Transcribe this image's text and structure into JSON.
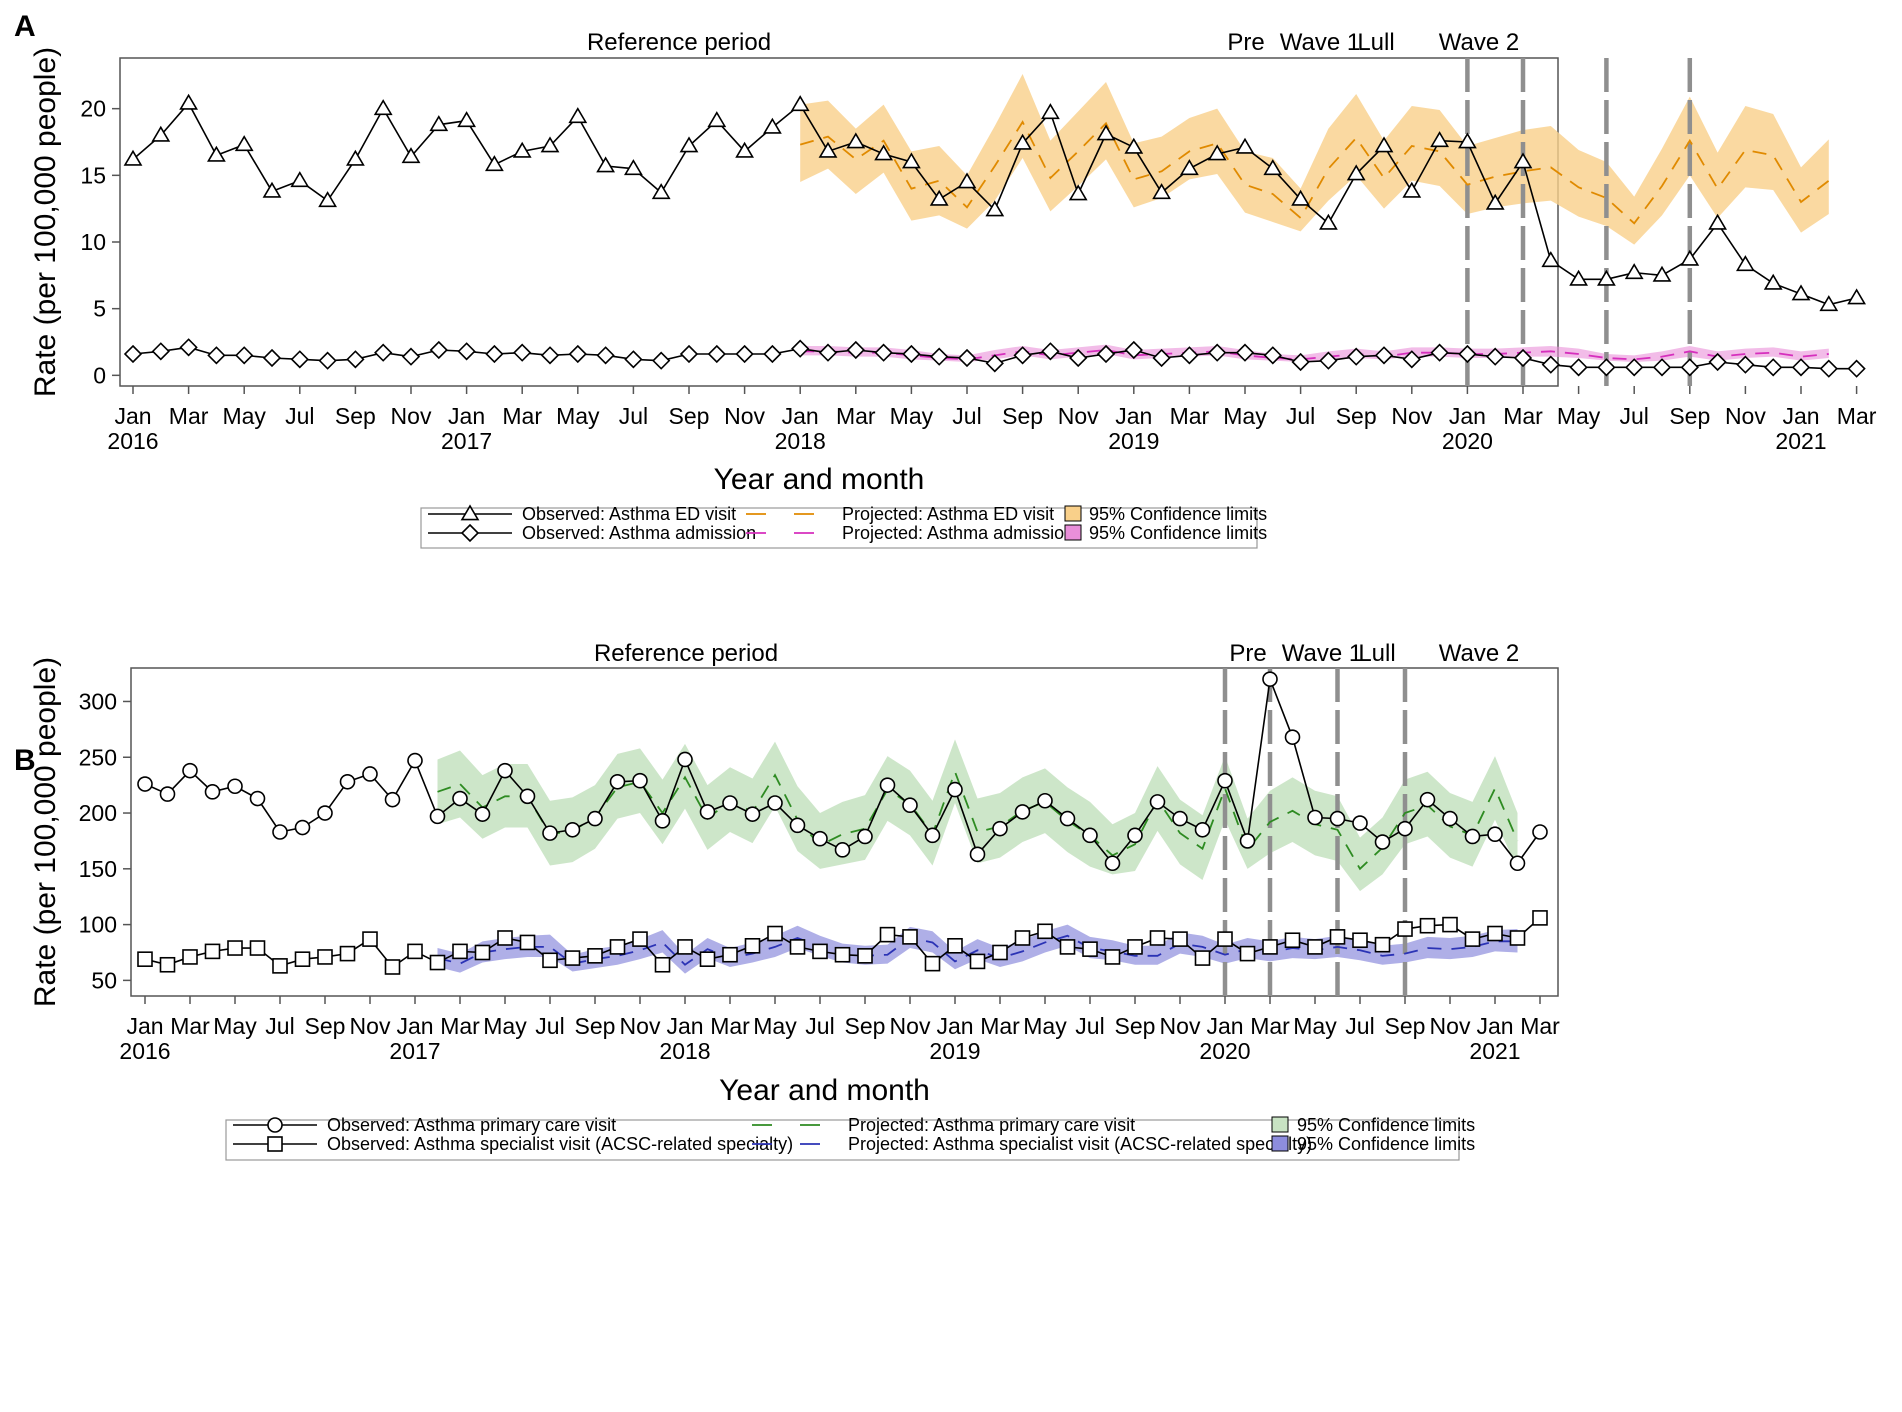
{
  "chart_data": [
    {
      "panel": "A",
      "type": "line",
      "xlabel": "Year and month",
      "ylabel": "Rate (per 100,000 people)",
      "ylim": [
        -0.8,
        23.8
      ],
      "yticks": [
        0,
        5,
        10,
        15,
        20
      ],
      "month_labels": [
        "Jan",
        "Mar",
        "May",
        "Jul",
        "Sep",
        "Nov",
        "Jan",
        "Mar",
        "May",
        "Jul",
        "Sep",
        "Nov",
        "Jan",
        "Mar",
        "May",
        "Jul",
        "Sep",
        "Nov",
        "Jan",
        "Mar",
        "May",
        "Jul",
        "Sep",
        "Nov",
        "Jan",
        "Mar",
        "May",
        "Jul",
        "Sep",
        "Nov",
        "Jan",
        "Mar"
      ],
      "year_labels": [
        "2016",
        "2017",
        "2018",
        "2019",
        "2020",
        "2021"
      ],
      "periods": [
        "Reference period",
        "Pre",
        "Wave 1",
        "Lull",
        "Wave 2"
      ],
      "series": [
        {
          "name": "Observed: Asthma ED visit",
          "kind": "observed",
          "marker": "triangle",
          "start": 0,
          "values": [
            16.2,
            18.0,
            20.4,
            16.5,
            17.3,
            13.8,
            14.6,
            13.1,
            16.2,
            20.0,
            16.4,
            18.8,
            19.1,
            15.8,
            16.8,
            17.2,
            19.4,
            15.7,
            15.5,
            13.7,
            17.2,
            19.1,
            16.8,
            18.6,
            20.3,
            16.8,
            17.5,
            16.6,
            16.0,
            13.2,
            14.5,
            12.4,
            17.4,
            19.7,
            13.6,
            18.1,
            17.1,
            13.7,
            15.5,
            16.6,
            17.1,
            15.5,
            13.2,
            11.4,
            15.1,
            17.2,
            13.8,
            17.6,
            17.5,
            12.9,
            16.0,
            8.6,
            7.2,
            7.2,
            7.7,
            7.5,
            8.7,
            11.4,
            8.3,
            6.9,
            6.1,
            5.3,
            5.8
          ]
        },
        {
          "name": "Observed: Asthma admission",
          "kind": "observed",
          "marker": "diamond",
          "start": 0,
          "values": [
            1.6,
            1.8,
            2.1,
            1.5,
            1.5,
            1.3,
            1.2,
            1.1,
            1.2,
            1.7,
            1.4,
            1.9,
            1.8,
            1.6,
            1.7,
            1.5,
            1.6,
            1.5,
            1.2,
            1.1,
            1.6,
            1.6,
            1.6,
            1.6,
            2.0,
            1.7,
            1.9,
            1.7,
            1.6,
            1.4,
            1.3,
            0.9,
            1.5,
            1.8,
            1.3,
            1.6,
            1.9,
            1.3,
            1.5,
            1.7,
            1.7,
            1.5,
            1.0,
            1.1,
            1.4,
            1.5,
            1.2,
            1.7,
            1.6,
            1.4,
            1.3,
            0.8,
            0.6,
            0.6,
            0.6,
            0.6,
            0.6,
            1.0,
            0.8,
            0.6,
            0.6,
            0.5,
            0.5
          ]
        },
        {
          "name": "Projected: Asthma ED visit",
          "kind": "projected",
          "color": "#e08a00",
          "start": 24,
          "values": [
            17.3,
            17.9,
            16.2,
            17.6,
            14.0,
            14.6,
            12.6,
            15.7,
            19.0,
            14.8,
            16.8,
            18.9,
            14.7,
            15.3,
            16.8,
            17.4,
            14.3,
            13.6,
            11.8,
            15.5,
            17.8,
            14.8,
            17.2,
            16.8,
            14.3,
            14.9,
            15.3,
            15.6,
            14.1,
            13.3,
            11.4,
            14.2,
            17.6,
            14.0,
            16.9,
            16.5,
            13.0,
            14.6
          ]
        },
        {
          "name": "Projected: Asthma admission",
          "kind": "projected",
          "color": "#d62fbd",
          "start": 24,
          "values": [
            1.8,
            1.8,
            1.7,
            1.7,
            1.5,
            1.3,
            1.2,
            1.5,
            1.8,
            1.5,
            1.7,
            1.9,
            1.5,
            1.6,
            1.7,
            1.8,
            1.5,
            1.3,
            1.2,
            1.4,
            1.6,
            1.4,
            1.7,
            1.7,
            1.6,
            1.6,
            1.7,
            1.8,
            1.6,
            1.3,
            1.2,
            1.4,
            1.8,
            1.4,
            1.6,
            1.7,
            1.4,
            1.6
          ]
        },
        {
          "name": "95% Confidence limits",
          "kind": "band",
          "fill": "#f9d08a",
          "opacity": 0.8,
          "start": 24,
          "lower": [
            14.5,
            15.5,
            13.6,
            15.2,
            11.6,
            12.0,
            11.0,
            13.1,
            16.3,
            12.3,
            14.2,
            16.2,
            12.6,
            13.3,
            14.7,
            15.1,
            12.2,
            11.5,
            10.8,
            13.1,
            15.0,
            12.5,
            14.6,
            14.2,
            12.1,
            12.6,
            12.9,
            13.1,
            11.9,
            11.2,
            9.8,
            12.0,
            15.0,
            11.8,
            14.1,
            13.9,
            10.7,
            12.1
          ],
          "upper": [
            20.3,
            20.6,
            18.5,
            20.3,
            16.8,
            17.2,
            15.0,
            18.7,
            22.6,
            17.6,
            19.8,
            22.0,
            17.4,
            17.9,
            19.3,
            20.0,
            16.8,
            16.3,
            14.0,
            18.5,
            21.1,
            17.6,
            20.2,
            19.9,
            17.2,
            17.8,
            18.4,
            18.7,
            16.9,
            16.0,
            13.4,
            17.0,
            20.9,
            16.7,
            20.2,
            19.6,
            15.6,
            17.7
          ]
        },
        {
          "name": "95% Confidence limits",
          "kind": "band",
          "fill": "#e98fd9",
          "opacity": 0.6,
          "start": 24,
          "lower": [
            1.5,
            1.5,
            1.4,
            1.4,
            1.2,
            1.1,
            1.0,
            1.2,
            1.5,
            1.2,
            1.4,
            1.6,
            1.2,
            1.3,
            1.4,
            1.5,
            1.2,
            1.1,
            1.0,
            1.1,
            1.3,
            1.2,
            1.4,
            1.4,
            1.3,
            1.3,
            1.4,
            1.4,
            1.3,
            1.1,
            1.0,
            1.1,
            1.4,
            1.1,
            1.3,
            1.4,
            1.1,
            1.3
          ],
          "upper": [
            2.2,
            2.2,
            2.1,
            2.1,
            1.9,
            1.6,
            1.5,
            1.9,
            2.2,
            1.9,
            2.1,
            2.3,
            1.9,
            2.0,
            2.1,
            2.2,
            1.9,
            1.6,
            1.5,
            1.8,
            2.0,
            1.8,
            2.1,
            2.1,
            2.0,
            2.0,
            2.1,
            2.2,
            2.0,
            1.6,
            1.5,
            1.8,
            2.2,
            1.8,
            2.0,
            2.1,
            1.8,
            2.0
          ]
        }
      ],
      "legend": {
        "observed": [
          "Observed: Asthma ED visit",
          "Observed: Asthma admission"
        ],
        "projected": [
          "Projected: Asthma ED visit",
          "Projected: Asthma admission"
        ],
        "bands": [
          "95% Confidence limits",
          "95% Confidence limits"
        ]
      }
    },
    {
      "panel": "B",
      "type": "line",
      "xlabel": "Year and month",
      "ylabel": "Rate (per 100,000 people)",
      "ylim": [
        36,
        330
      ],
      "yticks": [
        50,
        100,
        150,
        200,
        250,
        300
      ],
      "month_labels": [
        "Jan",
        "Mar",
        "May",
        "Jul",
        "Sep",
        "Nov",
        "Jan",
        "Mar",
        "May",
        "Jul",
        "Sep",
        "Nov",
        "Jan",
        "Mar",
        "May",
        "Jul",
        "Sep",
        "Nov",
        "Jan",
        "Mar",
        "May",
        "Jul",
        "Sep",
        "Nov",
        "Jan",
        "Mar",
        "May",
        "Jul",
        "Sep",
        "Nov",
        "Jan",
        "Mar"
      ],
      "year_labels": [
        "2016",
        "2017",
        "2018",
        "2019",
        "2020",
        "2021"
      ],
      "periods": [
        "Reference period",
        "Pre",
        "Wave 1",
        "Lull",
        "Wave 2"
      ],
      "series": [
        {
          "name": "Observed: Asthma primary care visit",
          "kind": "observed",
          "marker": "circle",
          "start": 0,
          "values": [
            226,
            217,
            238,
            219,
            224,
            213,
            183,
            187,
            200,
            228,
            235,
            212,
            247,
            197,
            213,
            199,
            238,
            215,
            182,
            185,
            195,
            228,
            229,
            193,
            248,
            201,
            209,
            199,
            209,
            189,
            177,
            167,
            179,
            225,
            207,
            180,
            221,
            163,
            186,
            201,
            211,
            195,
            180,
            155,
            180,
            210,
            195,
            185,
            229,
            175,
            320,
            268,
            196,
            195,
            191,
            174,
            186,
            212,
            195,
            179,
            181,
            155,
            183
          ]
        },
        {
          "name": "Observed: Asthma specialist visit (ACSC-related specialty)",
          "kind": "observed",
          "marker": "square",
          "start": 0,
          "values": [
            69,
            64,
            71,
            76,
            79,
            79,
            63,
            69,
            71,
            74,
            87,
            62,
            76,
            66,
            76,
            75,
            88,
            84,
            68,
            70,
            72,
            80,
            87,
            64,
            80,
            69,
            73,
            81,
            92,
            80,
            76,
            73,
            72,
            91,
            89,
            65,
            81,
            67,
            75,
            88,
            94,
            80,
            78,
            71,
            80,
            88,
            87,
            70,
            87,
            74,
            80,
            86,
            80,
            89,
            86,
            82,
            96,
            99,
            100,
            87,
            92,
            88,
            106
          ]
        },
        {
          "name": "Projected: Asthma primary care visit",
          "kind": "projected",
          "color": "#2e8b22",
          "start": 13,
          "values": [
            219,
            226,
            205,
            215,
            215,
            181,
            184,
            196,
            223,
            228,
            200,
            232,
            195,
            211,
            201,
            234,
            194,
            171,
            181,
            186,
            221,
            208,
            181,
            237,
            183,
            188,
            202,
            210,
            193,
            180,
            162,
            172,
            212,
            182,
            168,
            222,
            167,
            192,
            202,
            190,
            185,
            150,
            169,
            200,
            207,
            188,
            180,
            222,
            175
          ]
        },
        {
          "name": "Projected: Asthma specialist visit (ACSC-related specialty)",
          "kind": "projected",
          "color": "#2b33b5",
          "start": 13,
          "values": [
            70,
            65,
            75,
            78,
            80,
            80,
            65,
            69,
            72,
            77,
            84,
            64,
            78,
            70,
            74,
            80,
            88,
            80,
            74,
            72,
            73,
            88,
            84,
            67,
            77,
            70,
            76,
            84,
            90,
            79,
            76,
            72,
            72,
            83,
            80,
            73,
            78,
            75,
            79,
            77,
            80,
            77,
            72,
            74,
            79,
            78,
            80,
            85,
            85
          ]
        },
        {
          "name": "95% Confidence limits",
          "kind": "band",
          "fill": "#c8e3c3",
          "opacity": 0.9,
          "start": 13,
          "lower": [
            190,
            196,
            177,
            187,
            187,
            153,
            156,
            168,
            195,
            200,
            172,
            204,
            167,
            183,
            173,
            206,
            166,
            150,
            154,
            158,
            193,
            180,
            153,
            209,
            155,
            160,
            174,
            182,
            165,
            152,
            145,
            148,
            184,
            154,
            140,
            194,
            150,
            164,
            174,
            162,
            157,
            130,
            145,
            172,
            179,
            160,
            152,
            194,
            150
          ],
          "upper": [
            248,
            256,
            234,
            244,
            244,
            211,
            214,
            225,
            253,
            258,
            230,
            262,
            225,
            241,
            231,
            264,
            224,
            200,
            210,
            216,
            251,
            238,
            211,
            266,
            213,
            218,
            232,
            240,
            223,
            210,
            190,
            200,
            242,
            212,
            198,
            251,
            195,
            220,
            232,
            220,
            215,
            178,
            196,
            230,
            237,
            218,
            210,
            251,
            200
          ]
        },
        {
          "name": "95% Confidence limits",
          "kind": "band",
          "fill": "#8d8ddd",
          "opacity": 0.7,
          "start": 13,
          "lower": [
            62,
            57,
            66,
            69,
            71,
            71,
            58,
            61,
            64,
            69,
            75,
            56,
            70,
            62,
            66,
            71,
            79,
            72,
            66,
            64,
            65,
            79,
            75,
            60,
            69,
            62,
            67,
            75,
            81,
            70,
            68,
            64,
            64,
            74,
            71,
            65,
            70,
            67,
            70,
            69,
            71,
            68,
            64,
            66,
            70,
            69,
            71,
            76,
            75
          ],
          "upper": [
            79,
            74,
            85,
            88,
            90,
            91,
            73,
            78,
            81,
            87,
            95,
            73,
            88,
            79,
            84,
            90,
            99,
            90,
            83,
            81,
            82,
            98,
            94,
            76,
            87,
            79,
            86,
            94,
            100,
            89,
            86,
            81,
            81,
            93,
            90,
            82,
            88,
            85,
            89,
            87,
            90,
            86,
            81,
            83,
            89,
            88,
            90,
            95,
            96
          ]
        }
      ],
      "legend": {
        "observed": [
          "Observed: Asthma primary care visit",
          "Observed: Asthma specialist visit (ACSC-related specialty)"
        ],
        "projected": [
          "Projected: Asthma primary care visit",
          "Projected: Asthma specialist visit (ACSC-related specialty)"
        ],
        "bands": [
          "95% Confidence limits",
          "95% Confidence limits"
        ]
      }
    }
  ]
}
